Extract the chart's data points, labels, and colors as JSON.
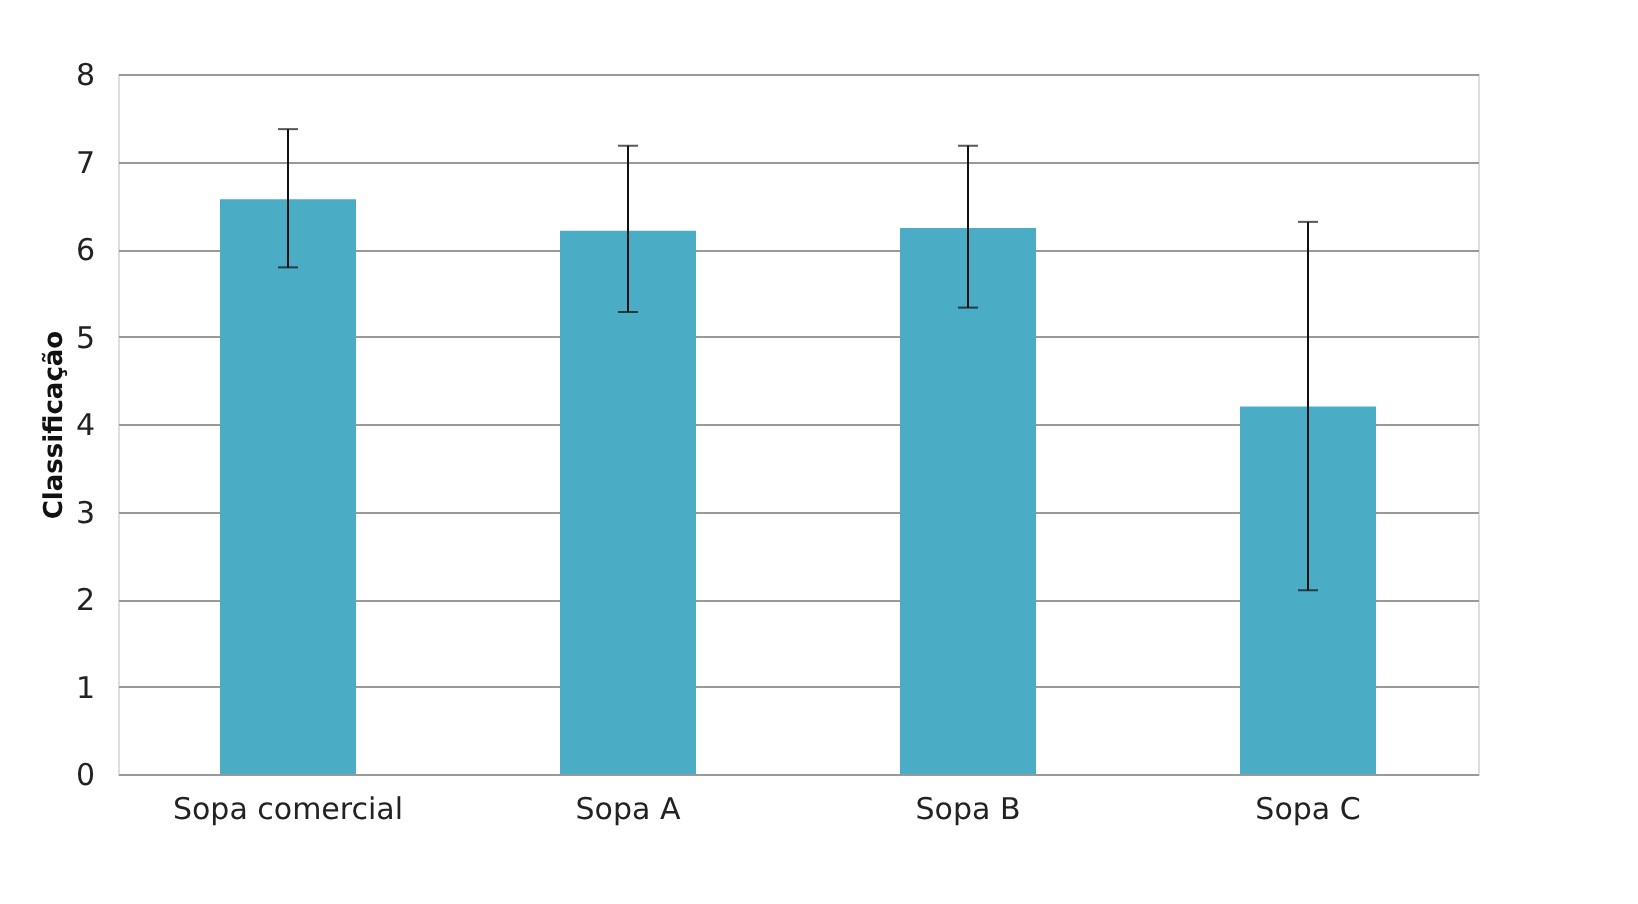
{
  "chart_data": {
    "type": "bar",
    "ylabel": "Classificação",
    "categories": [
      "Sopa comercial",
      "Sopa A",
      "Sopa B",
      "Sopa C"
    ],
    "values": [
      6.57,
      6.21,
      6.24,
      4.2
    ],
    "errors": [
      [
        5.79,
        7.37
      ],
      [
        5.28,
        7.18
      ],
      [
        5.33,
        7.18
      ],
      [
        2.1,
        6.31
      ]
    ],
    "color": "#4bacc6",
    "ylim": [
      0,
      8
    ],
    "yticks": [
      0,
      1,
      2,
      3,
      4,
      5,
      6,
      7,
      8
    ],
    "grid": "y"
  }
}
